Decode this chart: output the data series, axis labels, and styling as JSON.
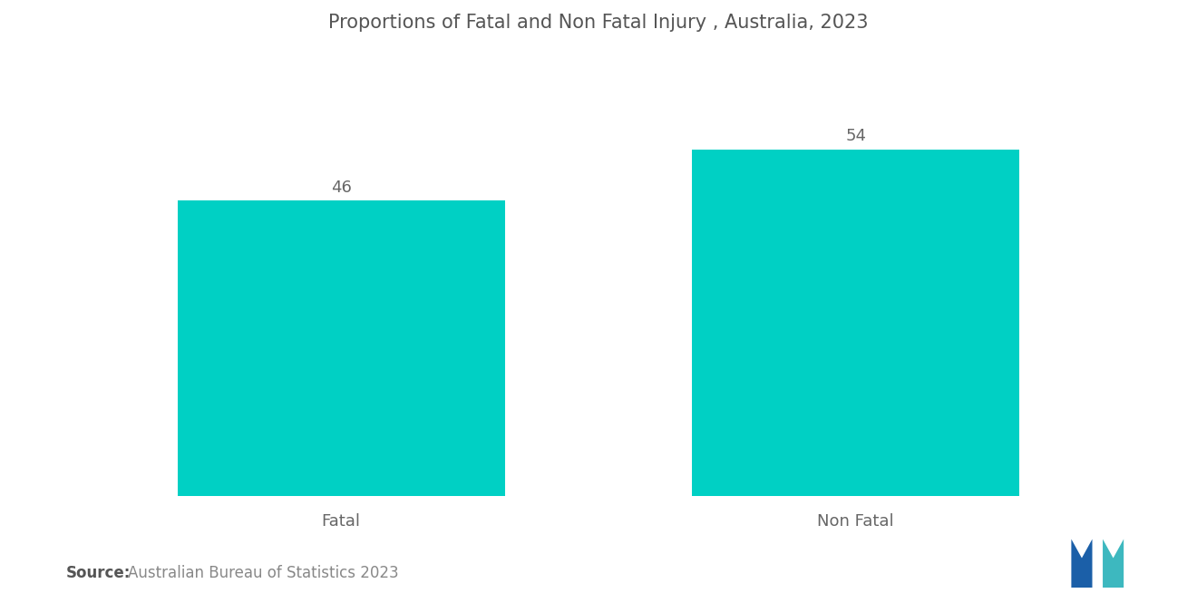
{
  "title": "Proportions of Fatal and Non Fatal Injury , Australia, 2023",
  "categories": [
    "Fatal",
    "Non Fatal"
  ],
  "values": [
    46,
    54
  ],
  "bar_color": "#00D0C4",
  "value_labels": [
    "46",
    "54"
  ],
  "ylim": [
    0,
    68
  ],
  "background_color": "#ffffff",
  "source_bold": "Source:",
  "source_text": "  Australian Bureau of Statistics 2023",
  "title_fontsize": 15,
  "label_fontsize": 13,
  "value_fontsize": 13,
  "source_fontsize": 12,
  "bar_width": 0.28,
  "x_positions": [
    0.28,
    0.72
  ]
}
